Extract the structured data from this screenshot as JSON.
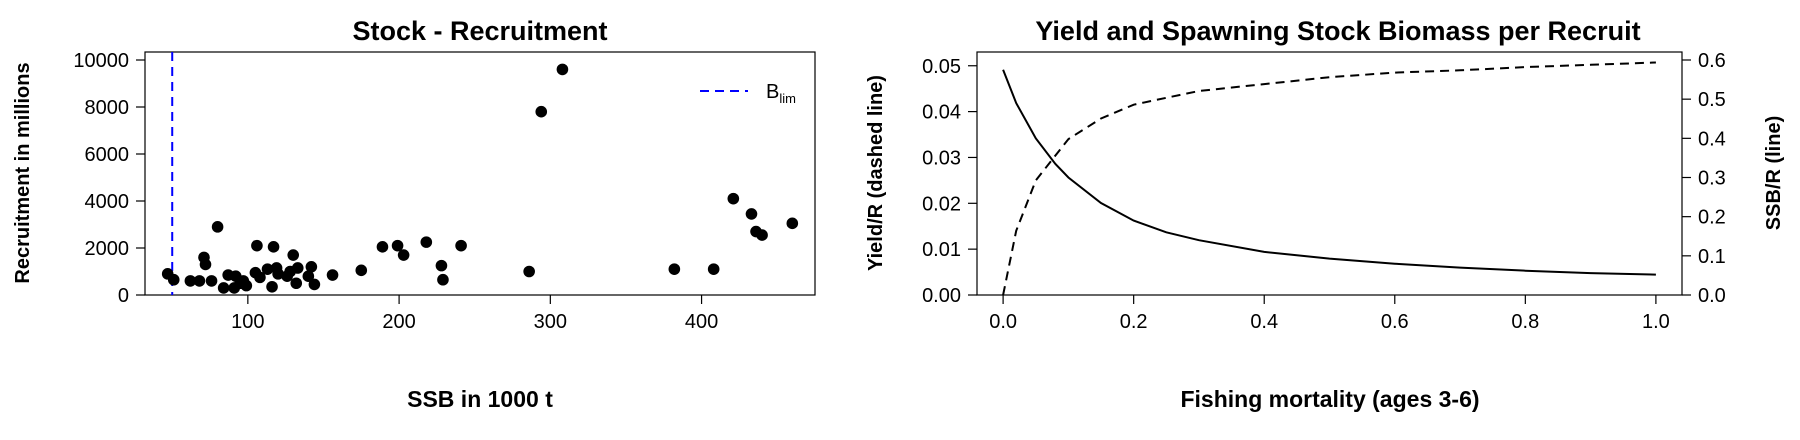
{
  "chart_data": [
    {
      "type": "scatter",
      "title": "Stock - Recruitment",
      "xlabel": "SSB in 1000 t",
      "ylabel": "Recruitment in millions",
      "xlim": [
        32,
        475
      ],
      "ylim": [
        0,
        10000
      ],
      "xticks": [
        100,
        200,
        300,
        400
      ],
      "yticks": [
        0,
        2000,
        4000,
        6000,
        8000,
        10000
      ],
      "grid": false,
      "legend": {
        "position": "top-right",
        "label": "B",
        "label_sub": "lim",
        "style": "dashed",
        "color": "#0000ff"
      },
      "reference_line": {
        "x": 50,
        "label": "Blim",
        "color": "#0000ff"
      },
      "points": [
        {
          "x": 47,
          "y": 900
        },
        {
          "x": 51,
          "y": 650
        },
        {
          "x": 62,
          "y": 600
        },
        {
          "x": 68,
          "y": 600
        },
        {
          "x": 71,
          "y": 1600
        },
        {
          "x": 72,
          "y": 1300
        },
        {
          "x": 76,
          "y": 600
        },
        {
          "x": 80,
          "y": 2900
        },
        {
          "x": 84,
          "y": 300
        },
        {
          "x": 87,
          "y": 850
        },
        {
          "x": 91,
          "y": 300
        },
        {
          "x": 92,
          "y": 800
        },
        {
          "x": 95,
          "y": 500
        },
        {
          "x": 97,
          "y": 600
        },
        {
          "x": 99,
          "y": 400
        },
        {
          "x": 105,
          "y": 950
        },
        {
          "x": 106,
          "y": 2100
        },
        {
          "x": 108,
          "y": 750
        },
        {
          "x": 113,
          "y": 1100
        },
        {
          "x": 116,
          "y": 350
        },
        {
          "x": 117,
          "y": 2050
        },
        {
          "x": 119,
          "y": 1150
        },
        {
          "x": 120,
          "y": 900
        },
        {
          "x": 126,
          "y": 800
        },
        {
          "x": 128,
          "y": 1000
        },
        {
          "x": 130,
          "y": 1700
        },
        {
          "x": 132,
          "y": 500
        },
        {
          "x": 133,
          "y": 1150
        },
        {
          "x": 140,
          "y": 800
        },
        {
          "x": 142,
          "y": 1200
        },
        {
          "x": 144,
          "y": 450
        },
        {
          "x": 156,
          "y": 850
        },
        {
          "x": 175,
          "y": 1050
        },
        {
          "x": 189,
          "y": 2050
        },
        {
          "x": 199,
          "y": 2100
        },
        {
          "x": 203,
          "y": 1700
        },
        {
          "x": 218,
          "y": 2250
        },
        {
          "x": 228,
          "y": 1250
        },
        {
          "x": 229,
          "y": 650
        },
        {
          "x": 241,
          "y": 2100
        },
        {
          "x": 286,
          "y": 1000
        },
        {
          "x": 294,
          "y": 7800
        },
        {
          "x": 308,
          "y": 9600
        },
        {
          "x": 382,
          "y": 1100
        },
        {
          "x": 408,
          "y": 1100
        },
        {
          "x": 421,
          "y": 4100
        },
        {
          "x": 433,
          "y": 3450
        },
        {
          "x": 436,
          "y": 2700
        },
        {
          "x": 440,
          "y": 2550
        },
        {
          "x": 460,
          "y": 3050
        }
      ]
    },
    {
      "type": "line",
      "title": "Yield and Spawning Stock Biomass per Recruit",
      "xlabel": "Fishing mortality (ages 3-6)",
      "ylabel": "Yield/R (dashed line)",
      "ylabel_right": "SSB/R (line)",
      "xlim": [
        -0.04,
        1.04
      ],
      "ylim": [
        0,
        0.053
      ],
      "ylim_right": [
        0,
        0.6
      ],
      "xticks": [
        "0.0",
        "0.2",
        "0.4",
        "0.6",
        "0.8",
        "1.0"
      ],
      "yticks": [
        "0.00",
        "0.01",
        "0.02",
        "0.03",
        "0.04",
        "0.05"
      ],
      "yticks_right": [
        "0.0",
        "0.1",
        "0.2",
        "0.3",
        "0.4",
        "0.5",
        "0.6"
      ],
      "grid": false,
      "series": [
        {
          "axis": "left",
          "style": "dashed",
          "x": [
            0,
            0.02,
            0.05,
            0.1,
            0.15,
            0.2,
            0.25,
            0.3,
            0.4,
            0.5,
            0.6,
            0.7,
            0.8,
            0.9,
            1.0
          ],
          "values": [
            0,
            0.014,
            0.025,
            0.034,
            0.0385,
            0.0415,
            0.043,
            0.0445,
            0.046,
            0.0475,
            0.0485,
            0.049,
            0.0497,
            0.0502,
            0.0507
          ]
        },
        {
          "axis": "right",
          "style": "solid",
          "x": [
            0,
            0.02,
            0.05,
            0.08,
            0.1,
            0.15,
            0.2,
            0.25,
            0.3,
            0.4,
            0.5,
            0.6,
            0.7,
            0.8,
            0.9,
            1.0
          ],
          "values": [
            0.575,
            0.49,
            0.4,
            0.335,
            0.3,
            0.235,
            0.19,
            0.16,
            0.14,
            0.11,
            0.093,
            0.08,
            0.07,
            0.062,
            0.056,
            0.052
          ]
        }
      ]
    }
  ]
}
